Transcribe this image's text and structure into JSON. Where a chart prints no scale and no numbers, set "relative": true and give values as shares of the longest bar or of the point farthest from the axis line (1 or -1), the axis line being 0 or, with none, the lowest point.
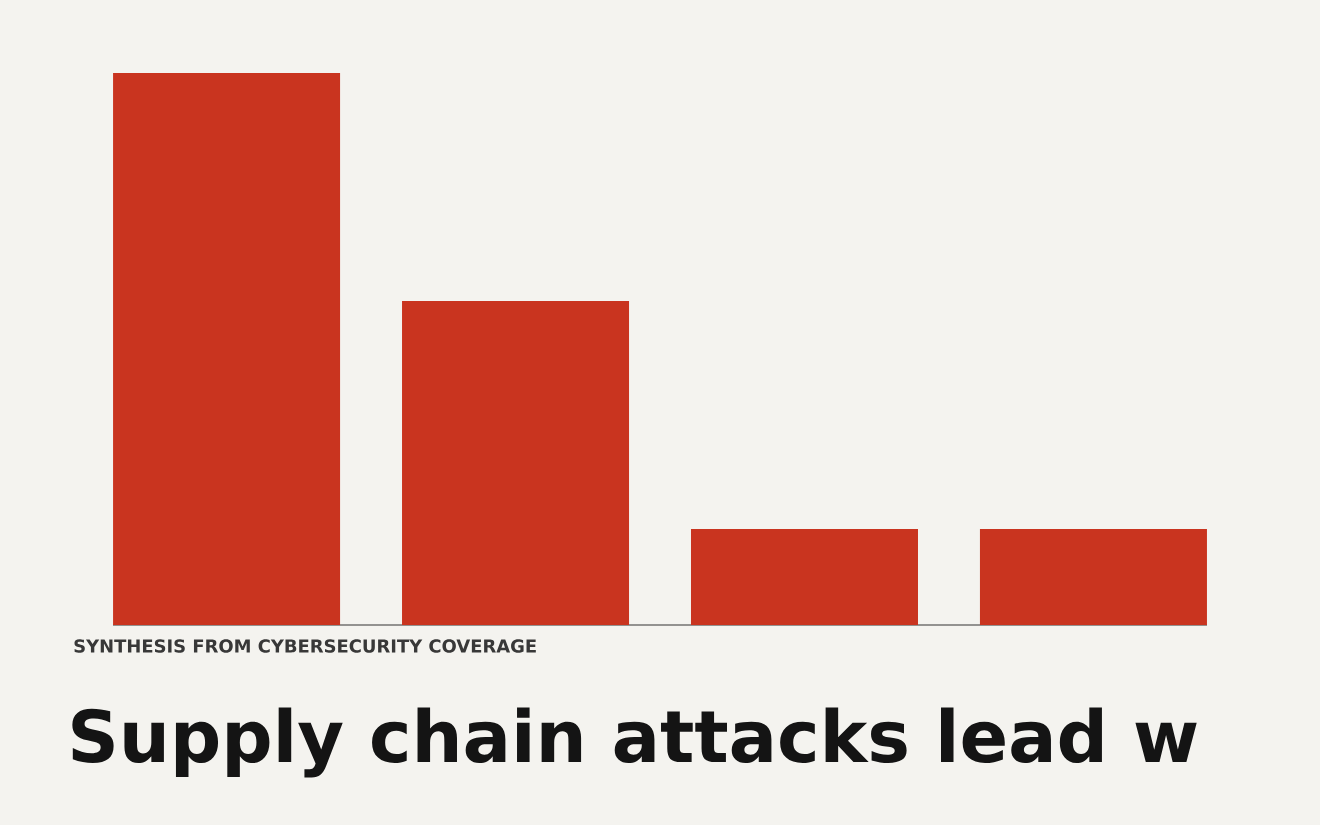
{
  "chart_data": {
    "type": "bar",
    "title": "Supply chain attacks lead w",
    "annotations": [
      "SYNTHESIS FROM CYBERSECURITY COVERAGE"
    ],
    "categories": [
      null,
      null,
      null,
      null
    ],
    "values": [
      1,
      0.587,
      0.174,
      0.174
    ],
    "color": "#c9341f",
    "relative": true
  }
}
